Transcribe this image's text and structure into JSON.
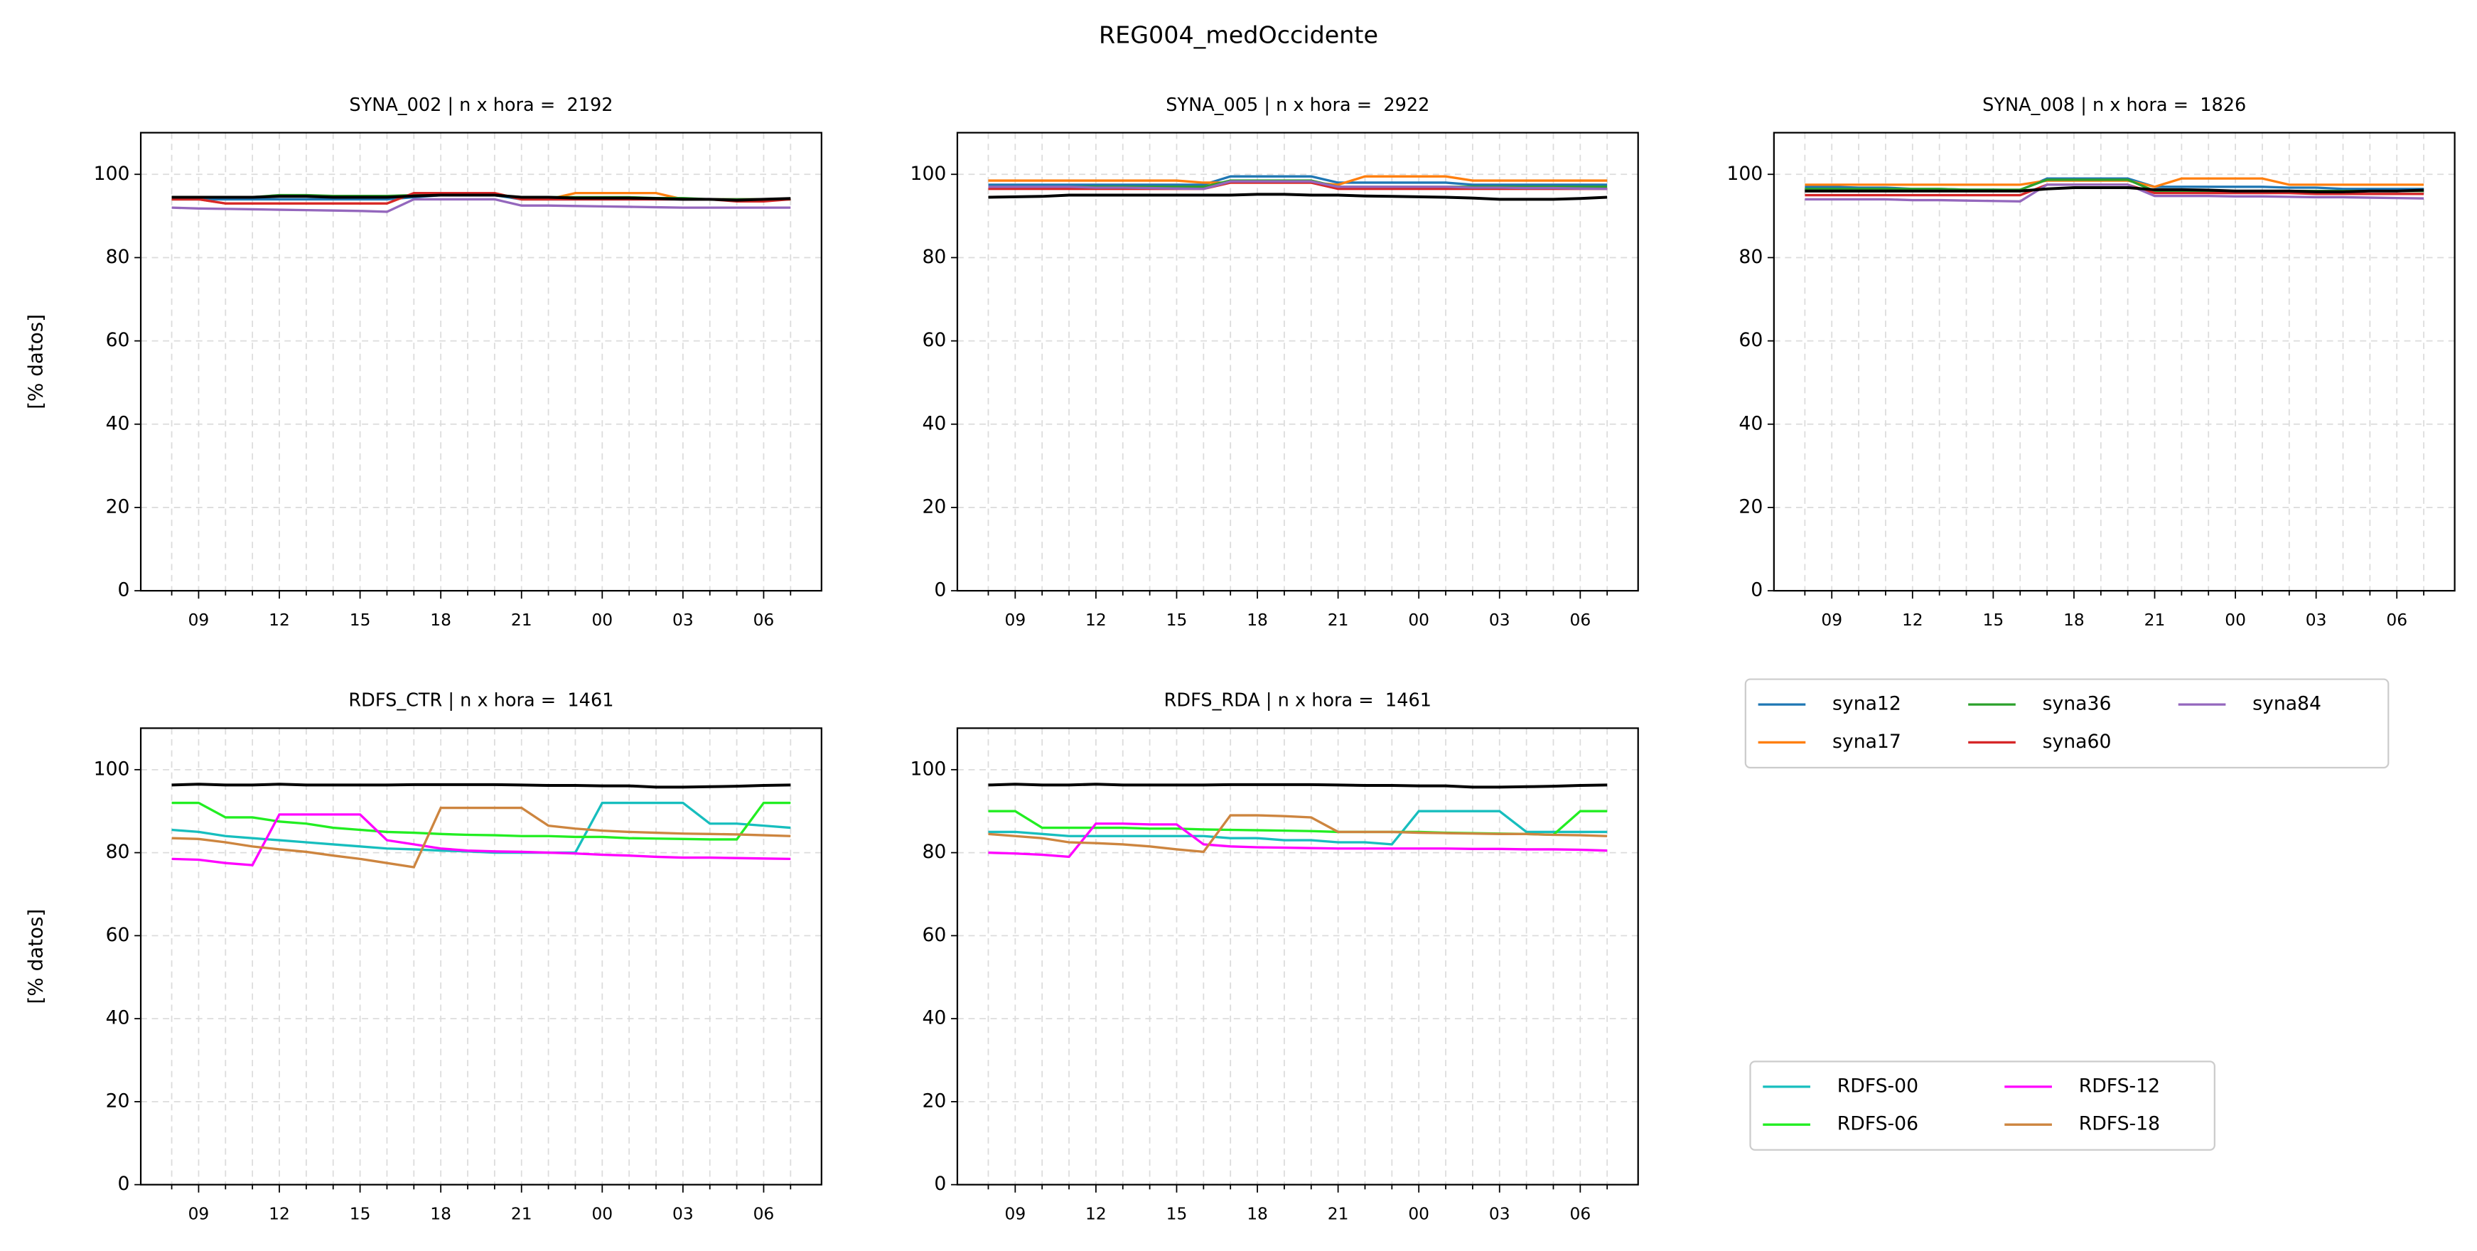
{
  "title": "REG004_medOccidente",
  "chart_data": [
    {
      "type": "line",
      "title": "SYNA_002 | n x hora =  2192",
      "ylabel": "[% datos]",
      "categories": [
        null,
        "09",
        null,
        null,
        "12",
        null,
        null,
        "15",
        null,
        null,
        "18",
        null,
        null,
        "21",
        null,
        null,
        "00",
        null,
        null,
        "03",
        null,
        null,
        "06",
        null
      ],
      "ylim": [
        0,
        110
      ],
      "yticks": [
        0,
        20,
        40,
        60,
        80,
        100
      ],
      "grid": true,
      "series": [
        {
          "name": "syna12",
          "color": "#1f77b4",
          "values": [
            94,
            94,
            94,
            94,
            94,
            94,
            94,
            94,
            94,
            94.5,
            95,
            95,
            95,
            94,
            94,
            94,
            94,
            94,
            94,
            94,
            94,
            94,
            94,
            94
          ]
        },
        {
          "name": "syna17",
          "color": "#ff7f0e",
          "values": [
            94,
            94,
            93,
            93,
            93,
            93,
            93,
            93,
            93,
            95.5,
            95.5,
            95.5,
            95.5,
            94,
            94,
            95.5,
            95.5,
            95.5,
            95.5,
            94,
            94,
            94,
            94,
            94
          ]
        },
        {
          "name": "syna36",
          "color": "#2ca02c",
          "values": [
            94.5,
            94.5,
            94.5,
            94.5,
            95,
            95,
            94.8,
            94.8,
            94.8,
            95,
            95,
            95,
            95,
            94.5,
            94.5,
            94.5,
            94.5,
            94.5,
            94.3,
            94.3,
            94,
            94,
            94,
            94
          ]
        },
        {
          "name": "syna60",
          "color": "#d62728",
          "values": [
            94,
            94,
            93,
            93,
            93,
            93,
            93,
            93,
            93,
            95.5,
            95.5,
            95.5,
            95.5,
            94,
            94,
            94,
            94,
            94,
            94,
            94,
            94,
            93.5,
            93.5,
            94
          ]
        },
        {
          "name": "syna84",
          "color": "#9467bd",
          "values": [
            92,
            91.8,
            91.7,
            91.6,
            91.5,
            91.4,
            91.3,
            91.2,
            91,
            94,
            94,
            94,
            94,
            92.5,
            92.5,
            92.4,
            92.3,
            92.2,
            92.1,
            92,
            92,
            92,
            92,
            92
          ]
        },
        {
          "color": "#000000",
          "values": [
            94.5,
            94.5,
            94.5,
            94.5,
            94.7,
            94.7,
            94.5,
            94.5,
            94.5,
            94.8,
            95,
            95,
            95,
            94.5,
            94.5,
            94.3,
            94.3,
            94.3,
            94.2,
            94,
            94,
            93.8,
            94,
            94.2
          ]
        }
      ]
    },
    {
      "type": "line",
      "title": "SYNA_005 | n x hora =  2922",
      "categories": [
        null,
        "09",
        null,
        null,
        "12",
        null,
        null,
        "15",
        null,
        null,
        "18",
        null,
        null,
        "21",
        null,
        null,
        "00",
        null,
        null,
        "03",
        null,
        null,
        "06",
        null
      ],
      "ylim": [
        0,
        110
      ],
      "yticks": [
        0,
        20,
        40,
        60,
        80,
        100
      ],
      "grid": true,
      "series": [
        {
          "name": "syna12",
          "color": "#1f77b4",
          "values": [
            97.5,
            97.5,
            97.5,
            97.5,
            97.5,
            97.5,
            97.5,
            97.5,
            97.5,
            99.5,
            99.5,
            99.5,
            99.5,
            98,
            98,
            98,
            98,
            98,
            97.5,
            97.5,
            97.5,
            97.5,
            97.5,
            97.5
          ]
        },
        {
          "name": "syna17",
          "color": "#ff7f0e",
          "values": [
            98.5,
            98.5,
            98.5,
            98.5,
            98.5,
            98.5,
            98.5,
            98.5,
            98,
            98,
            98,
            98,
            98,
            97.5,
            99.5,
            99.5,
            99.5,
            99.5,
            98.5,
            98.5,
            98.5,
            98.5,
            98.5,
            98.5
          ]
        },
        {
          "name": "syna36",
          "color": "#2ca02c",
          "values": [
            97,
            97,
            97,
            97,
            97,
            97,
            97,
            97,
            97,
            98.5,
            98.5,
            98.5,
            98.5,
            97,
            97,
            97,
            97,
            97,
            97,
            97,
            97,
            97,
            97,
            97
          ]
        },
        {
          "name": "syna60",
          "color": "#d62728",
          "values": [
            96.5,
            96.5,
            96.5,
            96.5,
            96.5,
            96.5,
            96.5,
            96.5,
            96.5,
            98,
            98,
            98,
            98,
            96.5,
            96.5,
            96.5,
            96.5,
            96.5,
            96.5,
            96.5,
            96.5,
            96.5,
            96.5,
            96.5
          ]
        },
        {
          "name": "syna84",
          "color": "#9467bd",
          "values": [
            97,
            97,
            97,
            97,
            96.8,
            96.8,
            96.7,
            96.6,
            96.5,
            98.3,
            98.3,
            98.3,
            98.3,
            97,
            97,
            97,
            97,
            97,
            96.8,
            96.8,
            96.7,
            96.7,
            96.6,
            96.5
          ]
        },
        {
          "color": "#000000",
          "values": [
            94.5,
            94.6,
            94.7,
            95,
            95,
            95,
            95,
            95,
            95,
            95,
            95.2,
            95.2,
            95,
            95,
            94.8,
            94.7,
            94.6,
            94.5,
            94.3,
            94,
            94,
            94,
            94.2,
            94.5
          ]
        }
      ]
    },
    {
      "type": "line",
      "title": "SYNA_008 | n x hora =  1826",
      "categories": [
        null,
        "09",
        null,
        null,
        "12",
        null,
        null,
        "15",
        null,
        null,
        "18",
        null,
        null,
        "21",
        null,
        null,
        "00",
        null,
        null,
        "03",
        null,
        null,
        "06",
        null
      ],
      "ylim": [
        0,
        110
      ],
      "yticks": [
        0,
        20,
        40,
        60,
        80,
        100
      ],
      "grid": true,
      "series": [
        {
          "name": "syna12",
          "color": "#1f77b4",
          "values": [
            97,
            97,
            96.8,
            96.8,
            96.5,
            96.5,
            96.3,
            96.3,
            96.2,
            99,
            99,
            99,
            99,
            97,
            97,
            97,
            97,
            97,
            96.8,
            96.8,
            96.5,
            96.5,
            96.5,
            96.5
          ]
        },
        {
          "name": "syna17",
          "color": "#ff7f0e",
          "values": [
            97.5,
            97.5,
            97.5,
            97.5,
            97.5,
            97.5,
            97.5,
            97.5,
            97.5,
            98.5,
            98.5,
            98.5,
            98.5,
            97,
            99,
            99,
            99,
            99,
            97.5,
            97.5,
            97.5,
            97.5,
            97.5,
            97.5
          ]
        },
        {
          "name": "syna36",
          "color": "#2ca02c",
          "values": [
            96.5,
            96.5,
            96.5,
            96.5,
            96.5,
            96.5,
            96.3,
            96.3,
            96.3,
            98.7,
            98.7,
            98.7,
            98.7,
            96,
            96,
            96,
            96,
            96,
            96,
            96,
            96,
            96,
            96,
            96
          ]
        },
        {
          "name": "syna60",
          "color": "#d62728",
          "values": [
            95,
            95,
            95,
            95,
            95,
            95,
            95,
            95,
            95,
            97.5,
            97.5,
            97.5,
            97.5,
            95.5,
            95.5,
            95.5,
            95.5,
            95.5,
            95.5,
            95.3,
            95.3,
            95.3,
            95.3,
            95.3
          ]
        },
        {
          "name": "syna84",
          "color": "#9467bd",
          "values": [
            94,
            94,
            94,
            94,
            93.8,
            93.8,
            93.7,
            93.6,
            93.5,
            97.5,
            97.5,
            97.5,
            97.5,
            94.8,
            94.8,
            94.8,
            94.7,
            94.7,
            94.6,
            94.5,
            94.5,
            94.4,
            94.3,
            94.2
          ]
        },
        {
          "color": "#000000",
          "values": [
            96,
            96,
            96,
            96,
            96,
            96,
            96,
            96,
            96,
            96.5,
            96.8,
            96.8,
            96.8,
            96.3,
            96.3,
            96.2,
            96,
            96,
            96,
            95.8,
            95.8,
            96,
            96,
            96.2
          ]
        }
      ]
    },
    {
      "type": "line",
      "title": "RDFS_CTR | n x hora =  1461",
      "ylabel": "[% datos]",
      "categories": [
        null,
        "09",
        null,
        null,
        "12",
        null,
        null,
        "15",
        null,
        null,
        "18",
        null,
        null,
        "21",
        null,
        null,
        "00",
        null,
        null,
        "03",
        null,
        null,
        "06",
        null
      ],
      "ylim": [
        0,
        110
      ],
      "yticks": [
        0,
        20,
        40,
        60,
        80,
        100
      ],
      "grid": true,
      "series": [
        {
          "name": "RDFS-00",
          "color": "#17bebe",
          "values": [
            85.5,
            85,
            84,
            83.5,
            83,
            82.5,
            82,
            81.5,
            81,
            80.8,
            80.5,
            80.3,
            80,
            80,
            80,
            80,
            92,
            92,
            92,
            92,
            87,
            87,
            86.5,
            86
          ]
        },
        {
          "name": "RDFS-06",
          "color": "#22ee22",
          "values": [
            92,
            92,
            88.5,
            88.5,
            87.5,
            87,
            86,
            85.5,
            85,
            84.8,
            84.5,
            84.3,
            84.2,
            84,
            84,
            83.8,
            83.8,
            83.5,
            83.4,
            83.3,
            83.2,
            83.2,
            92,
            92
          ]
        },
        {
          "name": "RDFS-12",
          "color": "#ff00ff",
          "values": [
            78.5,
            78.3,
            77.5,
            77,
            89.2,
            89.2,
            89.2,
            89.2,
            83,
            82,
            81,
            80.5,
            80.3,
            80.2,
            80,
            79.8,
            79.5,
            79.3,
            79,
            78.8,
            78.8,
            78.7,
            78.6,
            78.5
          ]
        },
        {
          "name": "RDFS-18",
          "color": "#cd853f",
          "values": [
            83.5,
            83.3,
            82.5,
            81.5,
            80.8,
            80.2,
            79.3,
            78.5,
            77.5,
            76.5,
            90.8,
            90.8,
            90.8,
            90.8,
            86.5,
            85.8,
            85.3,
            85,
            84.8,
            84.6,
            84.5,
            84.4,
            84.2,
            84
          ]
        },
        {
          "color": "#000000",
          "values": [
            96.3,
            96.5,
            96.3,
            96.3,
            96.5,
            96.3,
            96.3,
            96.3,
            96.3,
            96.4,
            96.4,
            96.4,
            96.4,
            96.3,
            96.2,
            96.2,
            96.1,
            96.1,
            95.8,
            95.8,
            95.9,
            96,
            96.2,
            96.3
          ]
        }
      ]
    },
    {
      "type": "line",
      "title": "RDFS_RDA | n x hora =  1461",
      "categories": [
        null,
        "09",
        null,
        null,
        "12",
        null,
        null,
        "15",
        null,
        null,
        "18",
        null,
        null,
        "21",
        null,
        null,
        "00",
        null,
        null,
        "03",
        null,
        null,
        "06",
        null
      ],
      "ylim": [
        0,
        110
      ],
      "yticks": [
        0,
        20,
        40,
        60,
        80,
        100
      ],
      "grid": true,
      "series": [
        {
          "name": "RDFS-00",
          "color": "#17bebe",
          "values": [
            85,
            85,
            84.5,
            84,
            84,
            84,
            84,
            84,
            84,
            83.5,
            83.5,
            83,
            83,
            82.5,
            82.5,
            82,
            90,
            90,
            90,
            90,
            85,
            85,
            85,
            85
          ]
        },
        {
          "name": "RDFS-06",
          "color": "#22ee22",
          "values": [
            90,
            90,
            86,
            86,
            86,
            86,
            85.8,
            85.8,
            85.6,
            85.5,
            85.4,
            85.3,
            85.2,
            85,
            85,
            85,
            85,
            84.8,
            84.7,
            84.6,
            84.5,
            84.3,
            90,
            90
          ]
        },
        {
          "name": "RDFS-12",
          "color": "#ff00ff",
          "values": [
            80,
            79.8,
            79.5,
            79,
            87,
            87,
            86.8,
            86.8,
            82,
            81.5,
            81.3,
            81.2,
            81.1,
            81,
            81,
            81,
            81,
            81,
            80.9,
            80.9,
            80.8,
            80.8,
            80.7,
            80.5
          ]
        },
        {
          "name": "RDFS-18",
          "color": "#cd853f",
          "values": [
            84.5,
            84,
            83.5,
            82.5,
            82.3,
            82,
            81.5,
            80.8,
            80.2,
            89,
            89,
            88.8,
            88.5,
            85,
            85,
            85,
            84.8,
            84.7,
            84.6,
            84.5,
            84.5,
            84.3,
            84.2,
            84
          ]
        },
        {
          "color": "#000000",
          "values": [
            96.3,
            96.5,
            96.3,
            96.3,
            96.5,
            96.3,
            96.3,
            96.3,
            96.3,
            96.4,
            96.4,
            96.4,
            96.4,
            96.3,
            96.2,
            96.2,
            96.1,
            96.1,
            95.8,
            95.8,
            95.9,
            96,
            96.2,
            96.3
          ]
        }
      ]
    }
  ]
}
